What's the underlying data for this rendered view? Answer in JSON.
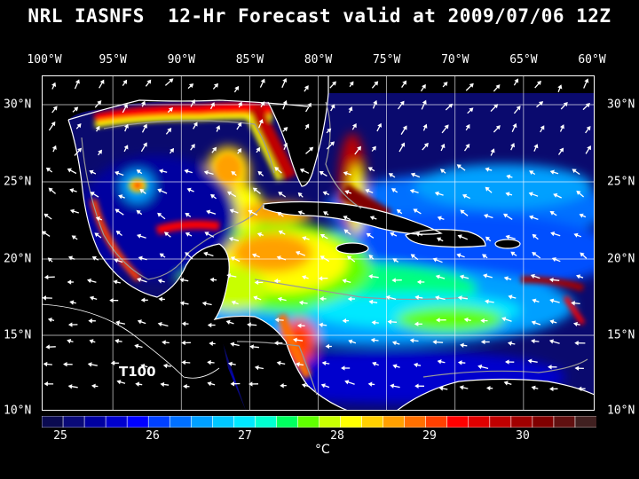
{
  "title": "NRL IASNFS  12-Hr Forecast valid at 2009/07/06 12Z",
  "lon_labels": [
    "100°W",
    "95°W",
    "90°W",
    "85°W",
    "80°W",
    "75°W",
    "70°W",
    "65°W",
    "60°W"
  ],
  "lat_labels": [
    "30°N",
    "25°N",
    "20°N",
    "15°N",
    "10°N"
  ],
  "annotation": "T100",
  "colorbar": {
    "tick_labels": [
      "25",
      "26",
      "27",
      "28",
      "29",
      "30"
    ],
    "unit": "°C",
    "colors": [
      "#0a0a50",
      "#0a0a78",
      "#0000a0",
      "#0000cd",
      "#0000ff",
      "#0040ff",
      "#0070ff",
      "#00a0ff",
      "#00c8ff",
      "#00e8ff",
      "#00ffd0",
      "#00ff60",
      "#60ff00",
      "#c8ff00",
      "#ffff00",
      "#ffd000",
      "#ffa000",
      "#ff7000",
      "#ff4000",
      "#ff0000",
      "#e00000",
      "#c00000",
      "#a00000",
      "#800000",
      "#601010",
      "#402020"
    ]
  },
  "colors": {
    "background": "#000000",
    "ocean_deep": "#0a0a6e",
    "land": "#000000",
    "coast": "#ffffff",
    "grid": "#ffffff"
  }
}
